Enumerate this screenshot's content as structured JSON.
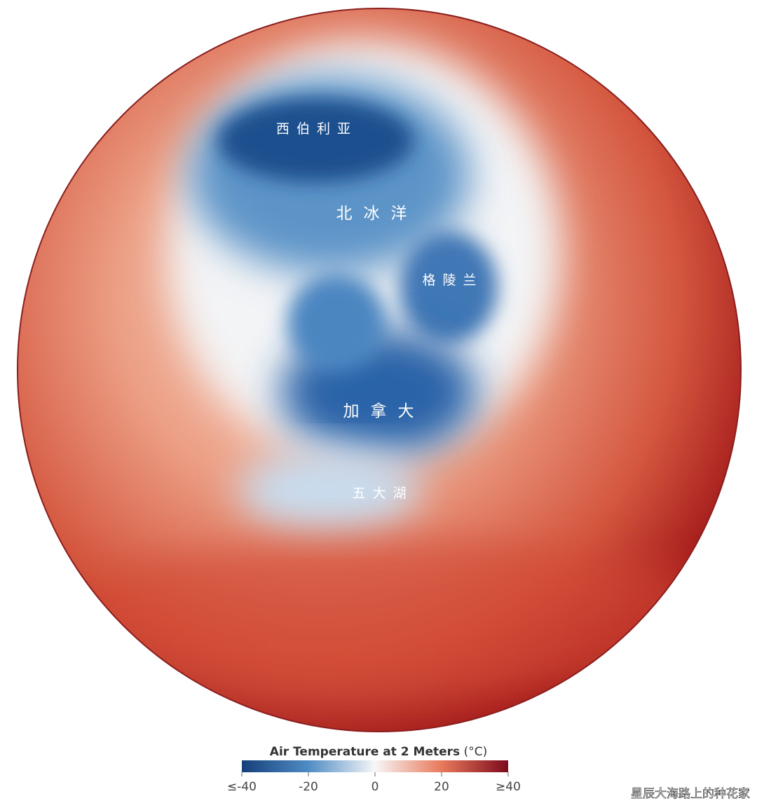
{
  "map": {
    "labels": [
      "西伯利亚",
      "北冰洋",
      "格陵兰",
      "加拿大",
      "五大湖"
    ]
  },
  "legend": {
    "title": "Air Temperature at 2 Meters",
    "unit": "(°C)",
    "range": [
      -40,
      40
    ],
    "ticks": [
      {
        "value": -40,
        "label": "≤-40"
      },
      -20,
      0,
      20,
      {
        "value": 40,
        "label": "≥40"
      }
    ]
  },
  "watermark": "星辰大海路上的种花家"
}
